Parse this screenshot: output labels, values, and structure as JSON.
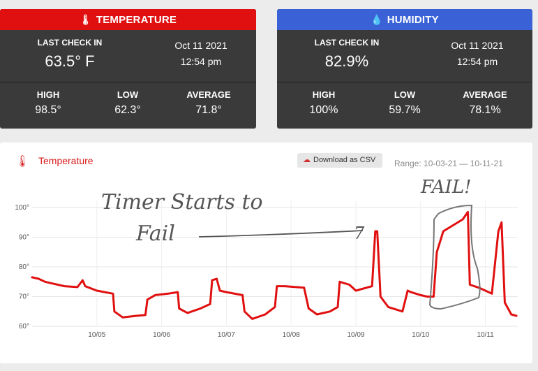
{
  "temperature_card": {
    "title": "TEMPERATURE",
    "icon": "thermometer-icon",
    "last_check_label": "LAST CHECK IN",
    "last_value": "63.5° F",
    "date": "Oct 11 2021",
    "time": "12:54 pm",
    "high_label": "HIGH",
    "high": "98.5°",
    "low_label": "LOW",
    "low": "62.3°",
    "avg_label": "AVERAGE",
    "avg": "71.8°",
    "color": "#e01010"
  },
  "humidity_card": {
    "title": "HUMIDITY",
    "icon": "droplet-icon",
    "last_check_label": "LAST CHECK IN",
    "last_value": "82.9%",
    "date": "Oct 11 2021",
    "time": "12:54 pm",
    "high_label": "HIGH",
    "high": "100%",
    "low_label": "LOW",
    "low": "59.7%",
    "avg_label": "AVERAGE",
    "avg": "78.1%",
    "color": "#3a62d6"
  },
  "chart_panel": {
    "title": "Temperature",
    "download_label": "Download as CSV",
    "range": "Range:  10-03-21 — 10-11-21"
  },
  "annotations": {
    "note1_line1": "Timer Starts to",
    "note1_line2": "Fail",
    "note2": "FAIL!"
  },
  "chart_data": {
    "type": "line",
    "title": "Temperature",
    "ylim": [
      60,
      100
    ],
    "yticks": [
      "60°",
      "70°",
      "80°",
      "90°",
      "100°"
    ],
    "xticks": [
      "10/05",
      "10/06",
      "10/07",
      "10/08",
      "10/09",
      "10/10",
      "10/11"
    ],
    "grid": true,
    "series": [
      {
        "color": "#e01010",
        "points": [
          [
            4.0,
            76.5
          ],
          [
            4.1,
            76
          ],
          [
            4.2,
            75
          ],
          [
            4.3,
            74.5
          ],
          [
            4.5,
            73.5
          ],
          [
            4.7,
            73.2
          ],
          [
            4.78,
            75.5
          ],
          [
            4.82,
            73.5
          ],
          [
            5.0,
            72
          ],
          [
            5.25,
            71
          ],
          [
            5.27,
            65
          ],
          [
            5.4,
            63
          ],
          [
            5.6,
            63.5
          ],
          [
            5.75,
            63.8
          ],
          [
            5.78,
            69
          ],
          [
            5.9,
            70.5
          ],
          [
            6.1,
            71
          ],
          [
            6.25,
            71.5
          ],
          [
            6.27,
            66
          ],
          [
            6.4,
            64.5
          ],
          [
            6.6,
            66
          ],
          [
            6.75,
            67.5
          ],
          [
            6.78,
            75.5
          ],
          [
            6.85,
            76
          ],
          [
            6.9,
            72
          ],
          [
            7.0,
            71.5
          ],
          [
            7.25,
            70.5
          ],
          [
            7.28,
            65
          ],
          [
            7.4,
            62.5
          ],
          [
            7.6,
            64
          ],
          [
            7.75,
            66.5
          ],
          [
            7.78,
            73.5
          ],
          [
            7.9,
            73.5
          ],
          [
            8.2,
            73
          ],
          [
            8.27,
            66
          ],
          [
            8.4,
            64
          ],
          [
            8.6,
            65
          ],
          [
            8.72,
            66.5
          ],
          [
            8.75,
            75
          ],
          [
            8.9,
            74
          ],
          [
            9.0,
            72
          ],
          [
            9.25,
            73.5
          ],
          [
            9.3,
            92
          ],
          [
            9.33,
            92
          ],
          [
            9.38,
            70
          ],
          [
            9.5,
            66.5
          ],
          [
            9.72,
            65
          ],
          [
            9.8,
            72
          ],
          [
            9.85,
            71.5
          ],
          [
            10.0,
            70.5
          ],
          [
            10.1,
            70
          ],
          [
            10.2,
            70
          ],
          [
            10.25,
            85
          ],
          [
            10.35,
            92
          ],
          [
            10.5,
            94
          ],
          [
            10.65,
            96
          ],
          [
            10.73,
            98.5
          ],
          [
            10.76,
            74
          ],
          [
            10.9,
            73
          ],
          [
            11.1,
            71
          ],
          [
            11.2,
            92
          ],
          [
            11.25,
            95
          ],
          [
            11.3,
            68
          ],
          [
            11.4,
            64
          ],
          [
            11.48,
            63.5
          ]
        ]
      }
    ]
  }
}
